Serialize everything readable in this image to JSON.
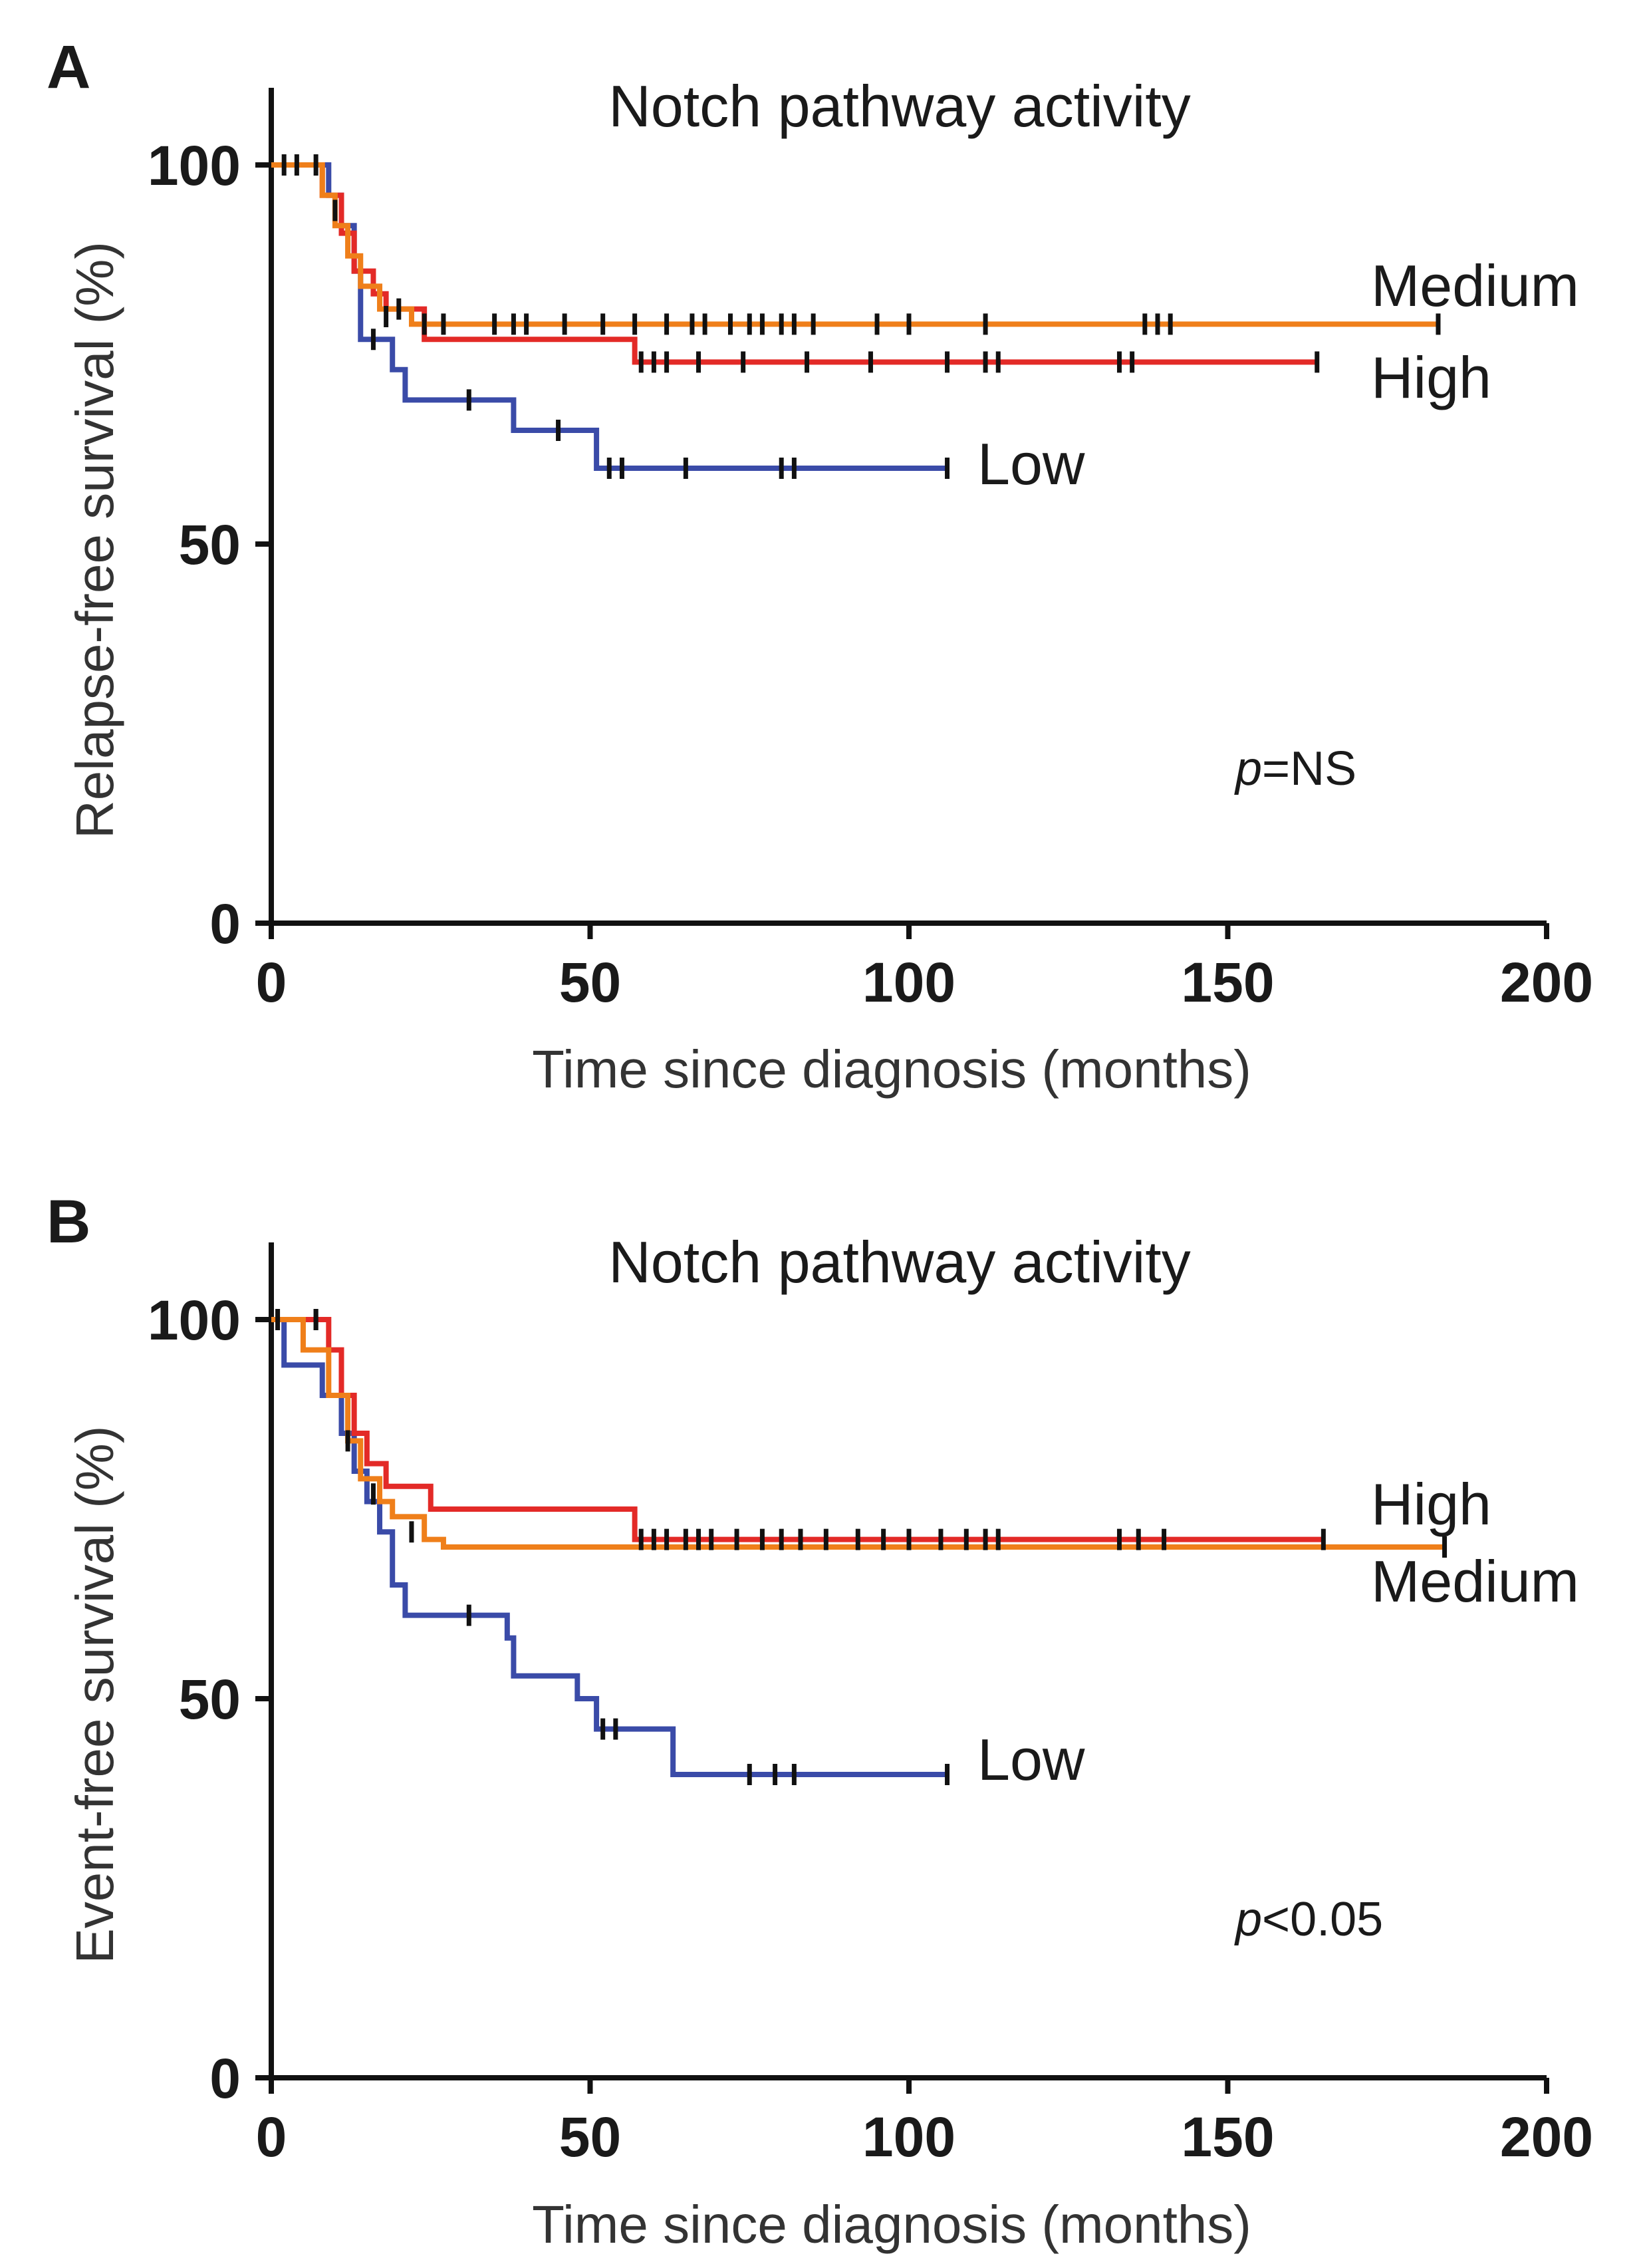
{
  "chart_data": [
    {
      "type": "line",
      "subtype": "kaplan-meier",
      "panel": "A",
      "title": "Notch pathway activity",
      "xlabel": "Time since diagnosis (months)",
      "ylabel": "Relapse-free survival (%)",
      "xlim": [
        0,
        200
      ],
      "ylim": [
        0,
        110
      ],
      "xticks": [
        0,
        50,
        100,
        150,
        200
      ],
      "yticks": [
        0,
        50,
        100
      ],
      "annotation": {
        "italic": "p",
        "rest": "=NS"
      },
      "series": [
        {
          "name": "Low",
          "color": "#3a4ba8",
          "steps": [
            [
              0,
              100
            ],
            [
              9,
              96
            ],
            [
              11,
              92
            ],
            [
              13,
              86
            ],
            [
              14,
              77
            ],
            [
              19,
              73
            ],
            [
              21,
              69
            ],
            [
              30,
              69
            ],
            [
              38,
              65
            ],
            [
              51,
              60
            ],
            [
              106,
              60
            ]
          ],
          "censors": [
            [
              7,
              100
            ],
            [
              10,
              94
            ],
            [
              16,
              77
            ],
            [
              31,
              69
            ],
            [
              45,
              65
            ],
            [
              53,
              60
            ],
            [
              55,
              60
            ],
            [
              65,
              60
            ],
            [
              80,
              60
            ],
            [
              82,
              60
            ],
            [
              106,
              60
            ]
          ]
        },
        {
          "name": "Medium",
          "color": "#ef7f1a",
          "steps": [
            [
              0,
              100
            ],
            [
              8,
              96
            ],
            [
              10,
              92
            ],
            [
              12,
              88
            ],
            [
              14,
              84
            ],
            [
              17,
              81
            ],
            [
              22,
              79
            ],
            [
              183,
              79
            ]
          ],
          "censors": [
            [
              2,
              100
            ],
            [
              18,
              80
            ],
            [
              24,
              79
            ],
            [
              27,
              79
            ],
            [
              35,
              79
            ],
            [
              38,
              79
            ],
            [
              40,
              79
            ],
            [
              46,
              79
            ],
            [
              52,
              79
            ],
            [
              57,
              79
            ],
            [
              62,
              79
            ],
            [
              66,
              79
            ],
            [
              68,
              79
            ],
            [
              72,
              79
            ],
            [
              75,
              79
            ],
            [
              77,
              79
            ],
            [
              80,
              79
            ],
            [
              82,
              79
            ],
            [
              85,
              79
            ],
            [
              95,
              79
            ],
            [
              100,
              79
            ],
            [
              112,
              79
            ],
            [
              137,
              79
            ],
            [
              139,
              79
            ],
            [
              141,
              79
            ],
            [
              183,
              79
            ]
          ]
        },
        {
          "name": "High",
          "color": "#e32a27",
          "steps": [
            [
              0,
              100
            ],
            [
              8,
              96
            ],
            [
              11,
              91
            ],
            [
              13,
              86
            ],
            [
              16,
              83
            ],
            [
              18,
              81
            ],
            [
              24,
              77
            ],
            [
              57,
              74
            ],
            [
              164,
              74
            ]
          ],
          "censors": [
            [
              4,
              100
            ],
            [
              20,
              81
            ],
            [
              58,
              74
            ],
            [
              60,
              74
            ],
            [
              62,
              74
            ],
            [
              67,
              74
            ],
            [
              74,
              74
            ],
            [
              84,
              74
            ],
            [
              94,
              74
            ],
            [
              106,
              74
            ],
            [
              112,
              74
            ],
            [
              114,
              74
            ],
            [
              133,
              74
            ],
            [
              135,
              74
            ],
            [
              164,
              74
            ]
          ]
        }
      ]
    },
    {
      "type": "line",
      "subtype": "kaplan-meier",
      "panel": "B",
      "title": "Notch pathway activity",
      "xlabel": "Time since diagnosis (months)",
      "ylabel": "Event-free survival (%)",
      "xlim": [
        0,
        200
      ],
      "ylim": [
        0,
        110
      ],
      "xticks": [
        0,
        50,
        100,
        150,
        200
      ],
      "yticks": [
        0,
        50,
        100
      ],
      "annotation": {
        "italic": "p",
        "rest": "<0.05"
      },
      "series": [
        {
          "name": "Low",
          "color": "#3a4ba8",
          "steps": [
            [
              0,
              100
            ],
            [
              2,
              94
            ],
            [
              8,
              90
            ],
            [
              11,
              85
            ],
            [
              13,
              80
            ],
            [
              15,
              76
            ],
            [
              17,
              72
            ],
            [
              19,
              65
            ],
            [
              21,
              61
            ],
            [
              37,
              58
            ],
            [
              38,
              53
            ],
            [
              48,
              50
            ],
            [
              51,
              46
            ],
            [
              63,
              40
            ],
            [
              106,
              40
            ]
          ],
          "censors": [
            [
              7,
              100
            ],
            [
              12,
              84
            ],
            [
              31,
              61
            ],
            [
              52,
              46
            ],
            [
              54,
              46
            ],
            [
              75,
              40
            ],
            [
              79,
              40
            ],
            [
              82,
              40
            ],
            [
              106,
              40
            ]
          ]
        },
        {
          "name": "Medium",
          "color": "#ef7f1a",
          "steps": [
            [
              0,
              100
            ],
            [
              5,
              96
            ],
            [
              9,
              90
            ],
            [
              12,
              84
            ],
            [
              14,
              79
            ],
            [
              17,
              76
            ],
            [
              19,
              74
            ],
            [
              24,
              71
            ],
            [
              27,
              70
            ],
            [
              184,
              70
            ]
          ],
          "censors": [
            [
              1,
              100
            ],
            [
              16,
              77
            ],
            [
              22,
              72
            ],
            [
              184,
              70
            ]
          ]
        },
        {
          "name": "High",
          "color": "#e32a27",
          "steps": [
            [
              0,
              100
            ],
            [
              9,
              96
            ],
            [
              11,
              90
            ],
            [
              13,
              85
            ],
            [
              15,
              81
            ],
            [
              18,
              78
            ],
            [
              25,
              75
            ],
            [
              57,
              71
            ],
            [
              165,
              71
            ]
          ],
          "censors": [
            [
              7,
              100
            ],
            [
              58,
              71
            ],
            [
              60,
              71
            ],
            [
              62,
              71
            ],
            [
              65,
              71
            ],
            [
              67,
              71
            ],
            [
              69,
              71
            ],
            [
              73,
              71
            ],
            [
              77,
              71
            ],
            [
              80,
              71
            ],
            [
              83,
              71
            ],
            [
              87,
              71
            ],
            [
              92,
              71
            ],
            [
              96,
              71
            ],
            [
              100,
              71
            ],
            [
              105,
              71
            ],
            [
              109,
              71
            ],
            [
              112,
              71
            ],
            [
              114,
              71
            ],
            [
              133,
              71
            ],
            [
              136,
              71
            ],
            [
              140,
              71
            ],
            [
              165,
              71
            ]
          ]
        }
      ]
    }
  ]
}
